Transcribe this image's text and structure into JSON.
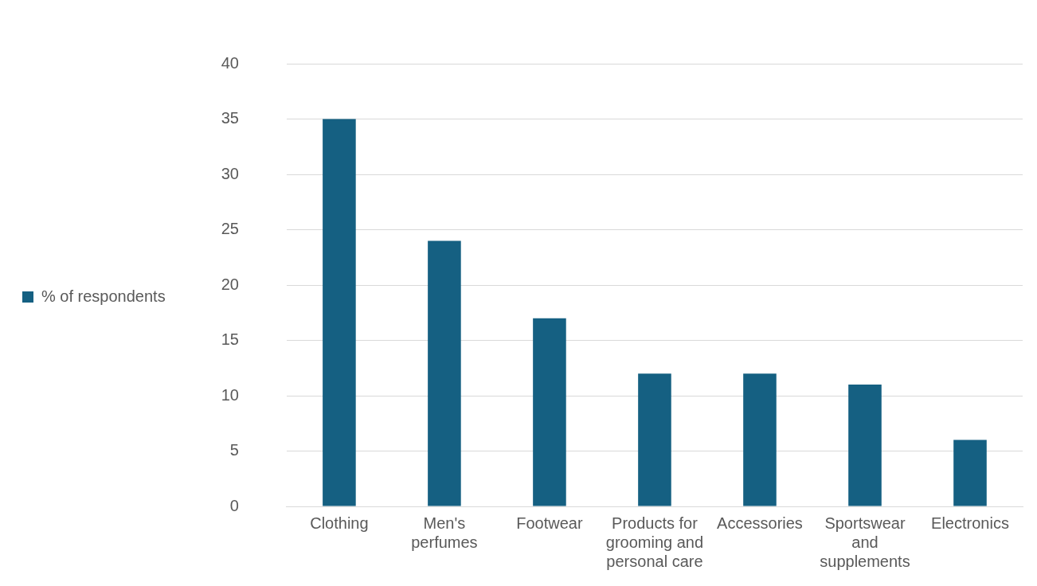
{
  "chart_data": {
    "type": "bar",
    "categories": [
      "Clothing",
      "Men's perfumes",
      "Footwear",
      "Products for grooming and personal care",
      "Accessories",
      "Sportswear and supplements",
      "Electronics"
    ],
    "series": [
      {
        "name": "% of respondents",
        "color": "#156082",
        "values": [
          35,
          24,
          17,
          12,
          12,
          11,
          6
        ]
      }
    ],
    "ylim": [
      0,
      40
    ],
    "yticks": [
      0,
      5,
      10,
      15,
      20,
      25,
      30,
      35,
      40
    ],
    "grid": "y",
    "legend": "left"
  }
}
